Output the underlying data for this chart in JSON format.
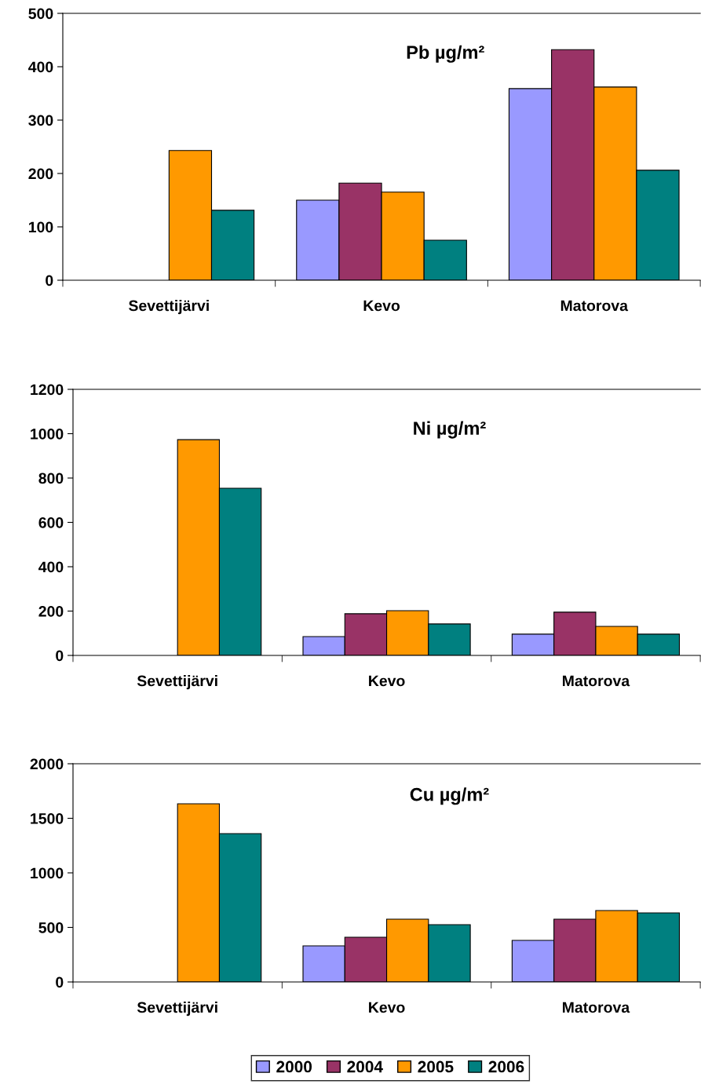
{
  "chart_data": [
    {
      "type": "bar",
      "title": "Pb µg/m²",
      "categories": [
        "Sevettijärvi",
        "Kevo",
        "Matorova"
      ],
      "ylim": [
        0,
        500
      ],
      "yticks": [
        0,
        100,
        200,
        300,
        400,
        500
      ],
      "grid": false,
      "legend": false,
      "series": [
        {
          "color": "#9999ff",
          "values": [
            null,
            150,
            359
          ]
        },
        {
          "color": "#993366",
          "values": [
            null,
            182,
            432
          ]
        },
        {
          "color": "#ff9900",
          "values": [
            243,
            165,
            362
          ]
        },
        {
          "color": "#008080",
          "values": [
            131,
            75,
            206
          ]
        }
      ]
    },
    {
      "type": "bar",
      "title": "Ni µg/m²",
      "categories": [
        "Sevettijärvi",
        "Kevo",
        "Matorova"
      ],
      "ylim": [
        0,
        1200
      ],
      "yticks": [
        0,
        200,
        400,
        600,
        800,
        1000,
        1200
      ],
      "grid": false,
      "legend": false,
      "series": [
        {
          "color": "#9999ff",
          "values": [
            null,
            85,
            96
          ]
        },
        {
          "color": "#993366",
          "values": [
            null,
            188,
            195
          ]
        },
        {
          "color": "#ff9900",
          "values": [
            973,
            202,
            131
          ]
        },
        {
          "color": "#008080",
          "values": [
            754,
            142,
            96
          ]
        }
      ]
    },
    {
      "type": "bar",
      "title": "Cu µg/m²",
      "categories": [
        "Sevettijärvi",
        "Kevo",
        "Matorova"
      ],
      "ylim": [
        0,
        2000
      ],
      "yticks": [
        0,
        500,
        1000,
        1500,
        2000
      ],
      "grid": false,
      "legend": "bottom",
      "series": [
        {
          "name": "2000",
          "color": "#9999ff",
          "values": [
            null,
            331,
            381
          ]
        },
        {
          "name": "2004",
          "color": "#993366",
          "values": [
            null,
            410,
            576
          ]
        },
        {
          "name": "2005",
          "color": "#ff9900",
          "values": [
            1633,
            576,
            655
          ]
        },
        {
          "name": "2006",
          "color": "#008080",
          "values": [
            1360,
            525,
            633
          ]
        }
      ]
    }
  ]
}
